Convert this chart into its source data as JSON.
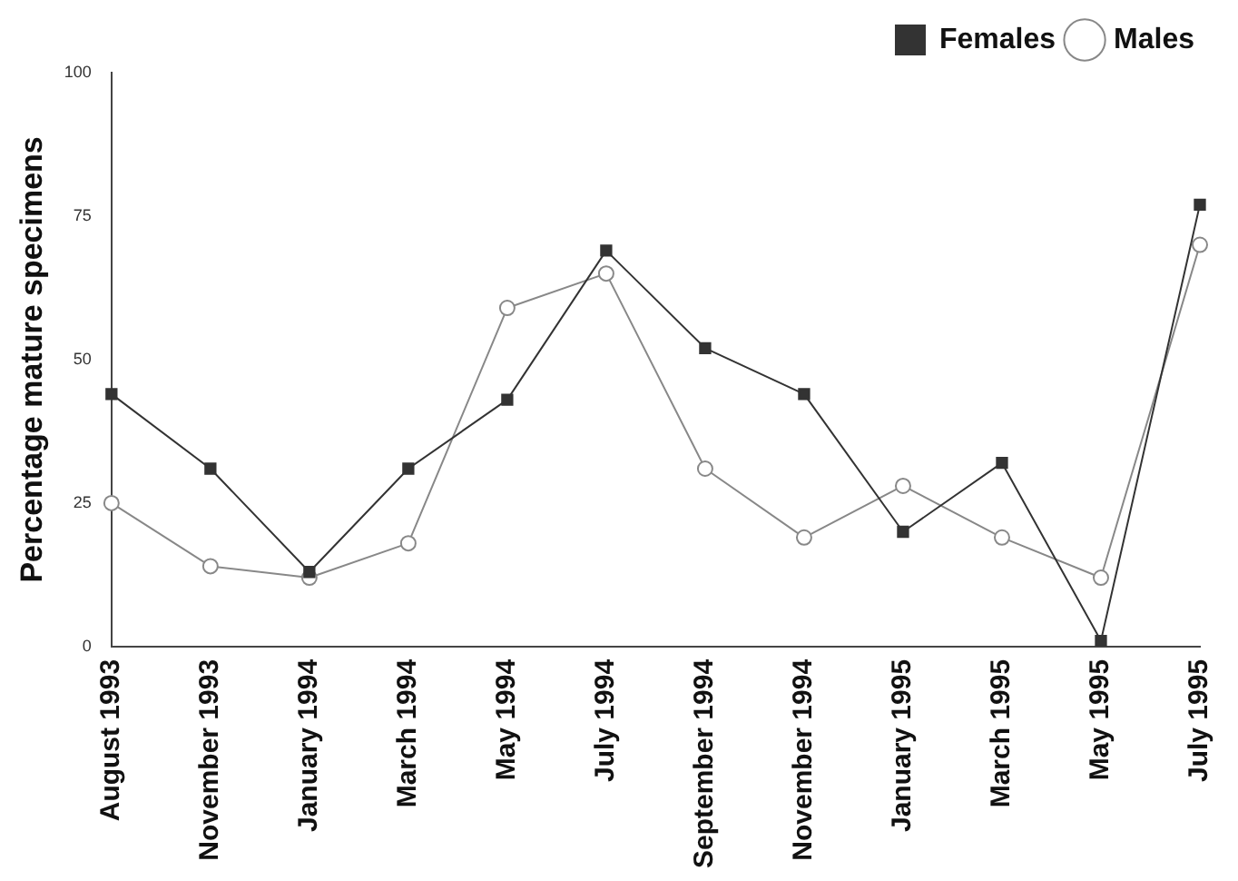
{
  "chart_data": {
    "type": "line",
    "ylabel": "Percentage mature specimens",
    "categories": [
      "August 1993",
      "November 1993",
      "January 1994",
      "March 1994",
      "May 1994",
      "July 1994",
      "September 1994",
      "November 1994",
      "January 1995",
      "March 1995",
      "May 1995",
      "July 1995"
    ],
    "series": [
      {
        "name": "Females",
        "color": "#333333",
        "marker": "square",
        "values": [
          44,
          31,
          13,
          31,
          43,
          69,
          52,
          44,
          20,
          32,
          1,
          77
        ]
      },
      {
        "name": "Males",
        "color": "#888888",
        "marker": "circle",
        "values": [
          25,
          14,
          12,
          18,
          59,
          65,
          31,
          19,
          28,
          19,
          12,
          70
        ]
      }
    ],
    "ylim": [
      0,
      100
    ],
    "yticks": [
      0,
      25,
      50,
      75,
      100
    ],
    "grid": false,
    "legend": "top right"
  }
}
